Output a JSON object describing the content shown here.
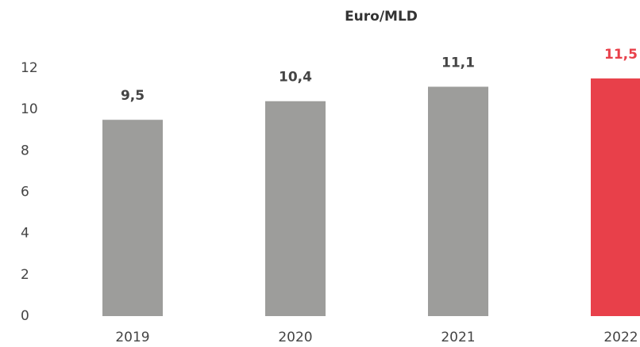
{
  "chart_data": {
    "type": "bar",
    "title": "Euro/MLD",
    "categories": [
      "2019",
      "2020",
      "2021",
      "2022"
    ],
    "values": [
      9.5,
      10.4,
      11.1,
      11.5
    ],
    "value_labels": [
      "9,5",
      "10,4",
      "11,1",
      "11,5"
    ],
    "colors": [
      "#9d9d9b",
      "#9d9d9b",
      "#9d9d9b",
      "#e8404a"
    ],
    "ylim": [
      0,
      12
    ],
    "yticks": [
      0,
      2,
      4,
      6,
      8,
      10,
      12
    ],
    "grid": false
  }
}
